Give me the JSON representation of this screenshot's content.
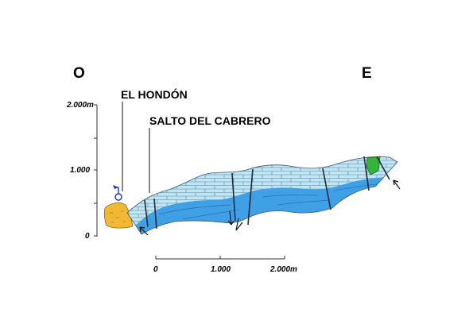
{
  "orientation": {
    "west": "O",
    "east": "E"
  },
  "places": {
    "hondon": "EL HONDÓN",
    "cabrero": "SALTO DEL CABRERO"
  },
  "vertical_axis": {
    "ticks": [
      "2.000m",
      "1.000",
      "0"
    ]
  },
  "horizontal_scale": {
    "ticks": [
      "0",
      "1.000",
      "2.000m"
    ]
  },
  "colors": {
    "upper_limestone": "#bfe6f5",
    "lower_limestone": "#3fa0e6",
    "orange_unit": "#f2b733",
    "green_unit": "#34b43a",
    "spring_marker": "#1a33cc",
    "lines": "#1f2a3a"
  }
}
